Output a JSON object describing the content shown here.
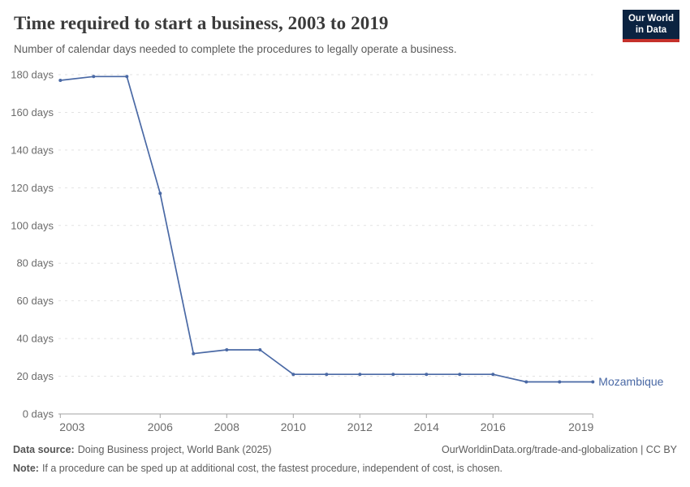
{
  "header": {
    "title": "Time required to start a business, 2003 to 2019",
    "subtitle": "Number of calendar days needed to complete the procedures to legally operate a business."
  },
  "logo": {
    "line1": "Our World",
    "line2": "in Data",
    "bg_color": "#0b2341",
    "stripe_color": "#c5312b"
  },
  "chart_data": {
    "type": "line",
    "title": "Time required to start a business, 2003 to 2019",
    "subtitle": "Number of calendar days needed to complete the procedures to legally operate a business.",
    "x": [
      2003,
      2004,
      2005,
      2006,
      2007,
      2008,
      2009,
      2010,
      2011,
      2012,
      2013,
      2014,
      2015,
      2016,
      2017,
      2018,
      2019
    ],
    "series": [
      {
        "name": "Mozambique",
        "color": "#4a69a5",
        "values": [
          177,
          179,
          179,
          117,
          32,
          34,
          34,
          21,
          21,
          21,
          21,
          21,
          21,
          21,
          17,
          17,
          17
        ]
      }
    ],
    "ylabel": "",
    "xlabel": "",
    "ylim": [
      0,
      180
    ],
    "yticks": [
      0,
      20,
      40,
      60,
      80,
      100,
      120,
      140,
      160,
      180
    ],
    "ytick_label_suffix": " days",
    "xticks": [
      2003,
      2006,
      2008,
      2010,
      2012,
      2014,
      2016,
      2019
    ],
    "grid": "horizontal-dashed",
    "legend": "line-end-label",
    "axis_color": "#a3a3a3",
    "grid_color": "#e2e2e2",
    "tick_text_color": "#6b6b6b"
  },
  "footer": {
    "source_label": "Data source:",
    "source_text": "Doing Business project, World Bank (2025)",
    "right_text": "OurWorldinData.org/trade-and-globalization | CC BY",
    "note_label": "Note:",
    "note_text": "If a procedure can be sped up at additional cost, the fastest procedure, independent of cost, is chosen."
  }
}
